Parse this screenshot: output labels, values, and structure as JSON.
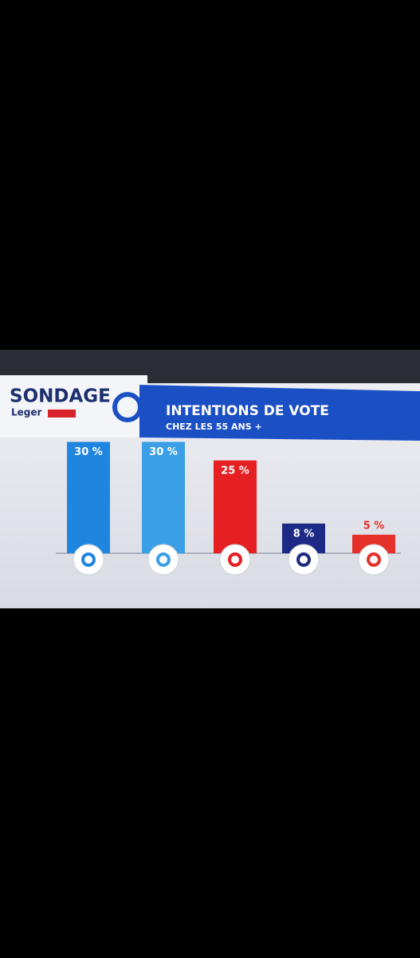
{
  "header": {
    "brand": "SONDAGE",
    "pollster": "Leger"
  },
  "chart_data": {
    "type": "bar",
    "title": "INTENTIONS DE VOTE",
    "subtitle": "CHEZ LES 55 ANS +",
    "categories": [
      null,
      null,
      null,
      null,
      null
    ],
    "values": [
      30,
      30,
      25,
      8,
      5
    ],
    "value_labels": [
      "30 %",
      "30 %",
      "25 %",
      "8 %",
      "5 %"
    ],
    "colors": [
      "#1f86e0",
      "#3a9fe6",
      "#e51f22",
      "#1c2a86",
      "#e6302a"
    ]
  }
}
